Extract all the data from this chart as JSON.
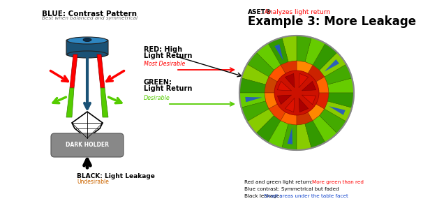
{
  "title_aset_bold": "ASET®",
  "title_aset_rest": ": Analyzes light return",
  "title_example": "Example 3: More Leakage",
  "blue_label": "BLUE: Contrast Pattern",
  "blue_sublabel": "Best when balanced and symmetrical",
  "red_label1": "RED: High",
  "red_label2": "Light Return",
  "red_sublabel": "Most Desirable",
  "green_label1": "GREEN:",
  "green_label2": "Light Return",
  "green_sublabel": "Desirable",
  "black_label": "BLACK: Light Leakage",
  "black_sublabel": "Undesirable",
  "dark_holder_label": "DARK HOLDER",
  "caption1a": "Red and green light return: ",
  "caption1b": "More green than red",
  "caption2": "Blue contrast: Symmetrical but faded",
  "caption3a": "Black leakage: ",
  "caption3b": "Small areas under the table facet",
  "bg_color": "#ffffff",
  "red_color": "#cc0000",
  "green_color": "#55cc00",
  "blue_color": "#1144cc",
  "orange_color": "#cc6600",
  "cylinder_color": "#1a5276",
  "cylinder_top": "#2e86c1",
  "holder_color": "#888888"
}
